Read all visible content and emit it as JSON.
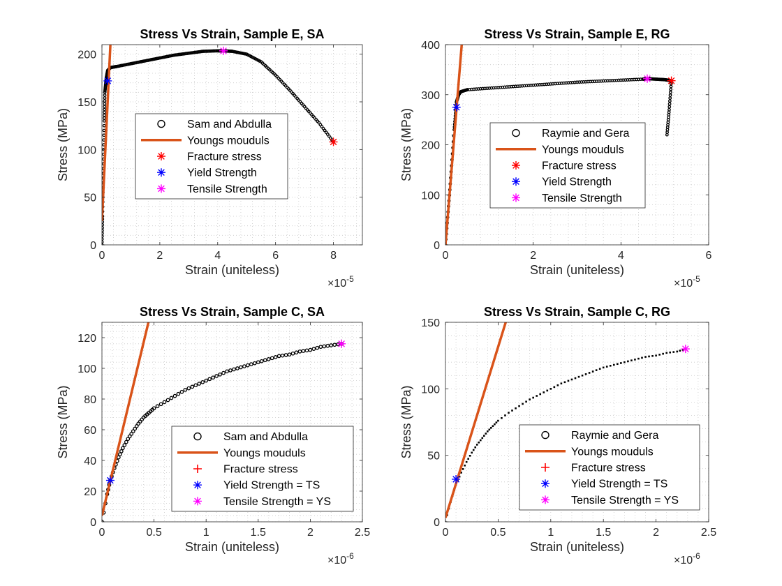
{
  "chart_data": [
    {
      "type": "scatter",
      "title": "Stress Vs Strain, Sample E, SA",
      "xlabel": "Strain (uniteless)",
      "ylabel": "Stress (MPa)",
      "x_exponent": "×10^-5",
      "x_exp_base": "×10",
      "x_exp_power": "-5",
      "x_scale": 1e-05,
      "xlim": [
        0,
        9
      ],
      "ylim": [
        0,
        210
      ],
      "xticks": [
        0,
        2,
        4,
        6,
        8
      ],
      "yticks": [
        0,
        50,
        100,
        150,
        200
      ],
      "grid": "minor dotted",
      "legend_placement": "center",
      "series": [
        {
          "name": "Sam and Abdulla",
          "marker": "circle",
          "color": "#000000",
          "x": [
            0,
            0.02,
            0.05,
            0.08,
            0.1,
            0.15,
            0.2,
            0.3,
            0.5,
            1.0,
            1.5,
            2.0,
            2.5,
            3.0,
            3.5,
            4.0,
            4.2,
            4.5,
            5.0,
            5.5,
            6.0,
            6.5,
            7.0,
            7.5,
            8.0
          ],
          "y": [
            0,
            30,
            80,
            130,
            160,
            175,
            183,
            186,
            187,
            190,
            193,
            196,
            199,
            201,
            203,
            203.5,
            203.5,
            203,
            200,
            192,
            178,
            162,
            145,
            128,
            108
          ]
        },
        {
          "name": "Youngs mouduls",
          "line": true,
          "color": "#d95319",
          "x": [
            0,
            0.3
          ],
          "y": [
            25,
            215
          ]
        },
        {
          "name": "Fracture stress",
          "marker": "asterisk",
          "color": "#ff0000",
          "x": [
            8.0
          ],
          "y": [
            108
          ]
        },
        {
          "name": "Yield Strength",
          "marker": "asterisk",
          "color": "#0000ff",
          "x": [
            0.2
          ],
          "y": [
            172
          ]
        },
        {
          "name": "Tensile Strength",
          "marker": "asterisk",
          "color": "#ff00ff",
          "x": [
            4.2
          ],
          "y": [
            203.5
          ]
        }
      ]
    },
    {
      "type": "scatter",
      "title": "Stress Vs Strain, Sample E, RG",
      "xlabel": "Strain (uniteless)",
      "ylabel": "Stress (MPa)",
      "x_exponent": "×10^-5",
      "x_exp_base": "×10",
      "x_exp_power": "-5",
      "x_scale": 1e-05,
      "xlim": [
        0,
        6
      ],
      "ylim": [
        0,
        400
      ],
      "xticks": [
        0,
        2,
        4,
        6
      ],
      "yticks": [
        0,
        100,
        200,
        300,
        400
      ],
      "grid": "minor dotted",
      "legend_placement": "center",
      "series": [
        {
          "name": "Raymie and Gera",
          "marker": "circle",
          "color": "#000000",
          "x": [
            0,
            0.1,
            0.2,
            0.25,
            0.3,
            0.35,
            0.5,
            1.0,
            1.5,
            2.0,
            2.5,
            3.0,
            3.5,
            4.0,
            4.5,
            4.6,
            4.8,
            5.0,
            5.15,
            5.1,
            5.05
          ],
          "y": [
            0,
            110,
            230,
            285,
            300,
            306,
            310,
            313,
            316,
            319,
            322,
            325,
            327,
            329,
            331,
            332,
            331,
            330,
            328,
            270,
            220
          ]
        },
        {
          "name": "Youngs mouduls",
          "line": true,
          "color": "#d95319",
          "x": [
            0,
            0.38
          ],
          "y": [
            0,
            410
          ]
        },
        {
          "name": "Fracture stress",
          "marker": "asterisk",
          "color": "#ff0000",
          "x": [
            5.15
          ],
          "y": [
            328
          ]
        },
        {
          "name": "Yield Strength",
          "marker": "asterisk",
          "color": "#0000ff",
          "x": [
            0.25
          ],
          "y": [
            275
          ]
        },
        {
          "name": "Tensile Strength",
          "marker": "asterisk",
          "color": "#ff00ff",
          "x": [
            4.6
          ],
          "y": [
            332
          ]
        }
      ]
    },
    {
      "type": "scatter",
      "title": "Stress Vs Strain, Sample C, SA",
      "xlabel": "Strain (uniteless)",
      "ylabel": "Stress (MPa)",
      "x_exponent": "×10^-6",
      "x_exp_base": "×10",
      "x_exp_power": "-6",
      "x_scale": 1e-06,
      "xlim": [
        0,
        2.5
      ],
      "ylim": [
        0,
        130
      ],
      "xticks": [
        0,
        0.5,
        1,
        1.5,
        2,
        2.5
      ],
      "yticks": [
        0,
        20,
        40,
        60,
        80,
        100,
        120
      ],
      "grid": "minor dotted",
      "legend_placement": "bottom-right",
      "series": [
        {
          "name": "Sam and Abdulla",
          "marker": "circle",
          "color": "#000000",
          "x": [
            0,
            0.05,
            0.08,
            0.12,
            0.16,
            0.2,
            0.25,
            0.3,
            0.35,
            0.4,
            0.45,
            0.5,
            0.6,
            0.7,
            0.8,
            0.9,
            1.0,
            1.1,
            1.2,
            1.3,
            1.4,
            1.5,
            1.6,
            1.7,
            1.8,
            1.9,
            2.0,
            2.1,
            2.2,
            2.3
          ],
          "y": [
            0,
            18,
            27,
            35,
            42,
            48,
            54,
            59,
            64,
            68,
            71,
            74,
            78,
            82,
            86,
            89,
            92,
            95,
            98,
            100,
            102,
            104,
            106,
            108,
            109,
            111,
            112,
            114,
            115,
            116
          ]
        },
        {
          "name": "Youngs mouduls",
          "line": true,
          "color": "#d95319",
          "x": [
            0,
            0.45
          ],
          "y": [
            4,
            131
          ]
        },
        {
          "name": "Fracture stress",
          "marker": "plus",
          "color": "#ff0000",
          "x": [],
          "y": []
        },
        {
          "name": "Yield Strength = TS",
          "marker": "asterisk",
          "color": "#0000ff",
          "x": [
            0.08
          ],
          "y": [
            27
          ]
        },
        {
          "name": "Tensile Strength = YS",
          "marker": "asterisk",
          "color": "#ff00ff",
          "x": [
            2.3
          ],
          "y": [
            116
          ]
        }
      ]
    },
    {
      "type": "scatter",
      "title": "Stress Vs Strain, Sample C, RG",
      "xlabel": "Strain (uniteless)",
      "ylabel": "Stress (MPa)",
      "x_exponent": "×10^-6",
      "x_exp_base": "×10",
      "x_exp_power": "-6",
      "x_scale": 1e-06,
      "xlim": [
        0,
        2.5
      ],
      "ylim": [
        0,
        150
      ],
      "xticks": [
        0,
        0.5,
        1,
        1.5,
        2,
        2.5
      ],
      "yticks": [
        0,
        50,
        100,
        150
      ],
      "grid": "minor dotted",
      "legend_placement": "bottom-right",
      "series": [
        {
          "name": "Raymie and Gera",
          "marker": "point",
          "color": "#000000",
          "x": [
            0,
            0.05,
            0.1,
            0.15,
            0.2,
            0.25,
            0.3,
            0.35,
            0.4,
            0.45,
            0.5,
            0.6,
            0.7,
            0.8,
            0.9,
            1.0,
            1.1,
            1.2,
            1.3,
            1.4,
            1.5,
            1.6,
            1.7,
            1.8,
            1.9,
            2.0,
            2.1,
            2.2,
            2.28
          ],
          "y": [
            0,
            15,
            28,
            37,
            45,
            52,
            58,
            63,
            68,
            72,
            76,
            82,
            87,
            92,
            96,
            100,
            104,
            107,
            110,
            113,
            116,
            118,
            120,
            122,
            124,
            125,
            127,
            128,
            130
          ]
        },
        {
          "name": "Youngs mouduls",
          "line": true,
          "color": "#d95319",
          "x": [
            0,
            0.58
          ],
          "y": [
            3,
            152
          ]
        },
        {
          "name": "Fracture stress",
          "marker": "plus",
          "color": "#ff0000",
          "x": [],
          "y": []
        },
        {
          "name": "Yield Strength = TS",
          "marker": "asterisk",
          "color": "#0000ff",
          "x": [
            0.1
          ],
          "y": [
            32
          ]
        },
        {
          "name": "Tensile Strength = YS",
          "marker": "asterisk",
          "color": "#ff00ff",
          "x": [
            2.28
          ],
          "y": [
            130
          ]
        }
      ]
    }
  ]
}
